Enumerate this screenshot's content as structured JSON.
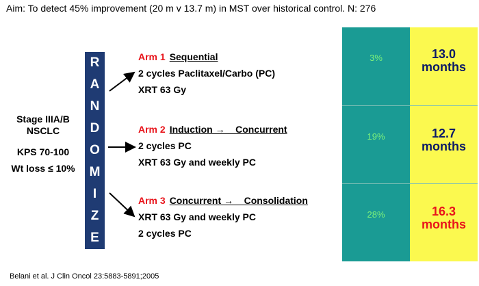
{
  "aim": "Aim: To detect 45% improvement (20 m v 13.7 m) in MST over historical control. N: 276",
  "patients": {
    "stage_line1": "Stage IIIA/B",
    "stage_line2": "NSCLC",
    "kps": "KPS 70-100",
    "wt_loss": "Wt loss ≤ 10%"
  },
  "randomize_letters": [
    "R",
    "A",
    "N",
    "D",
    "O",
    "M",
    "I",
    "Z",
    "E"
  ],
  "arms": [
    {
      "label": "Arm 1",
      "title": "Sequential",
      "lines": [
        "2 cycles Paclitaxel/Carbo (PC)",
        "XRT 63 Gy"
      ]
    },
    {
      "label": "Arm 2",
      "title": "Induction →    Concurrent",
      "lines": [
        "2 cycles PC",
        "XRT 63 Gy and weekly PC"
      ]
    },
    {
      "label": "Arm 3",
      "title": "Concurrent →    Consolidation",
      "lines": [
        "XRT 63 Gy and weekly PC",
        "2 cycles PC"
      ]
    }
  ],
  "results": [
    {
      "pct": "3%",
      "mst_line1": "13.0",
      "mst_line2": "months"
    },
    {
      "pct": "19%",
      "mst_line1": "12.7",
      "mst_line2": "months"
    },
    {
      "pct": "28%",
      "mst_line1": "16.3",
      "mst_line2": "months"
    }
  ],
  "colors": {
    "randomize_bar": "#1f3b73",
    "teal": "#1a9b94",
    "yellow": "#fbf94f",
    "arm_label": "#e8141b",
    "mst_text": "#0c1a66",
    "mst_highlight": "#e8141b",
    "pct_text": "#7ef27a"
  },
  "citation": "Belani et al. J Clin Oncol 23:5883-5891;2005"
}
